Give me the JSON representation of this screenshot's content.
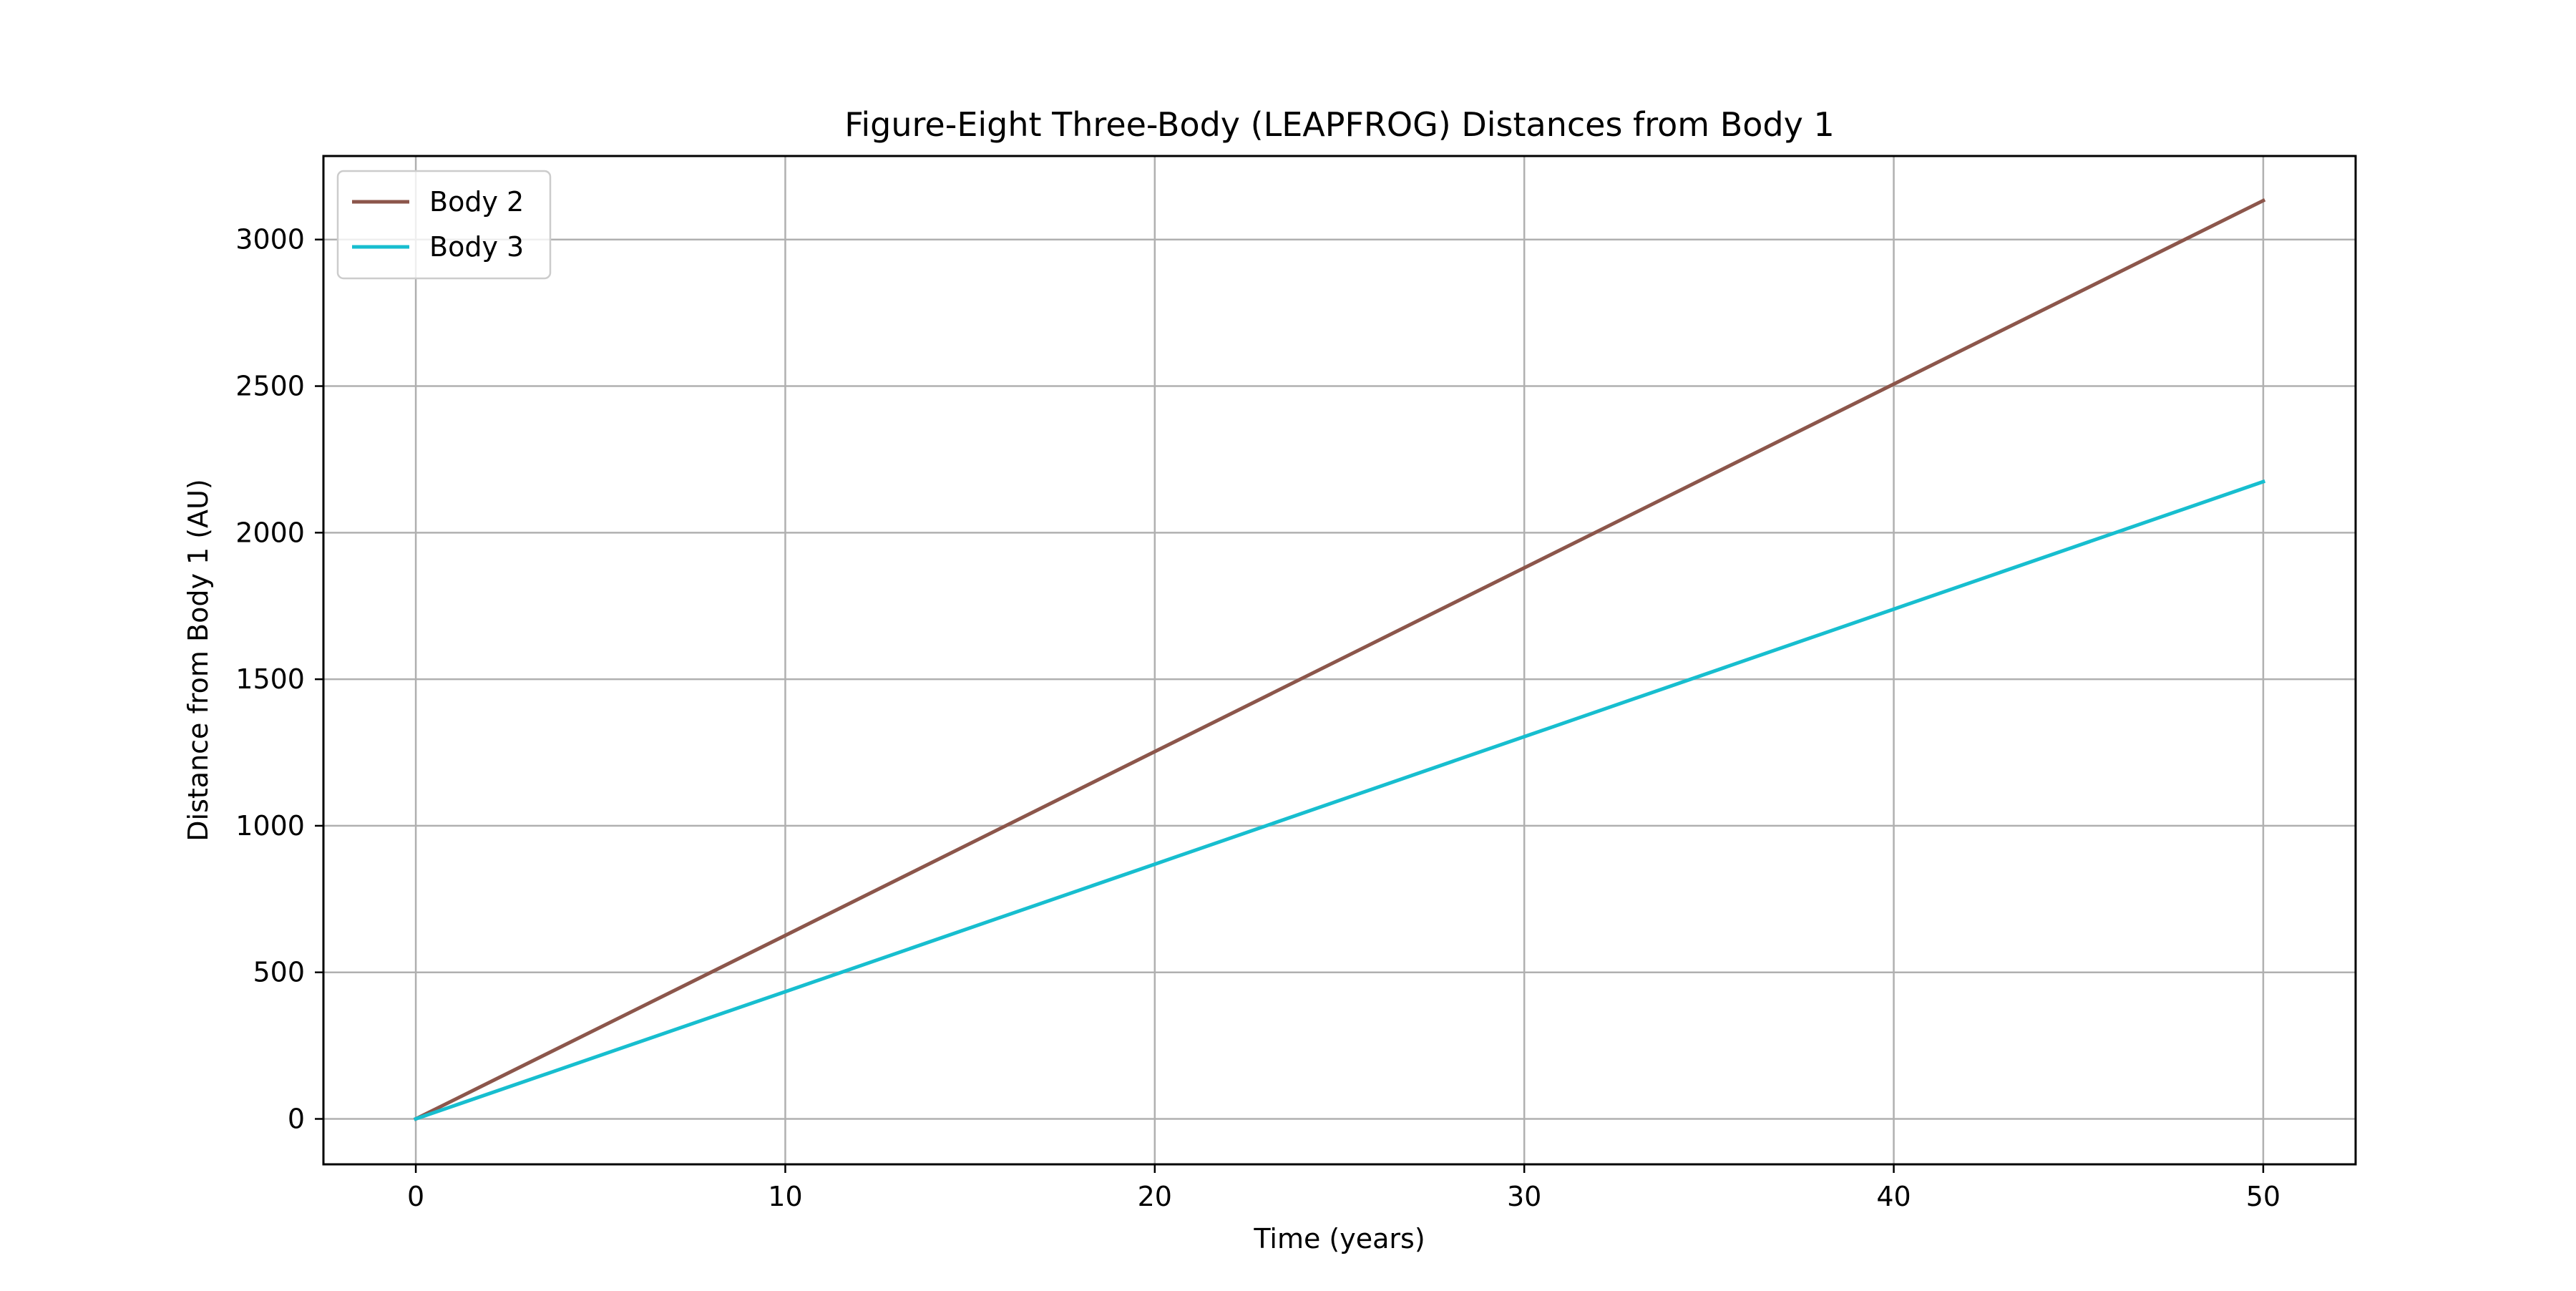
{
  "chart_data": {
    "type": "line",
    "title": "Figure-Eight Three-Body (LEAPFROG) Distances from Body 1",
    "xlabel": "Time (years)",
    "ylabel": "Distance from Body 1 (AU)",
    "xlim": [
      -2.5,
      52.5
    ],
    "ylim": [
      -155,
      3285
    ],
    "xticks": [
      0,
      10,
      20,
      30,
      40,
      50
    ],
    "xtick_labels": [
      "0",
      "10",
      "20",
      "30",
      "40",
      "50"
    ],
    "yticks": [
      0,
      500,
      1000,
      1500,
      2000,
      2500,
      3000
    ],
    "ytick_labels": [
      "0",
      "500",
      "1000",
      "1500",
      "2000",
      "2500",
      "3000"
    ],
    "grid": true,
    "legend_position": "upper-left",
    "series": [
      {
        "name": "Body 2",
        "color": "#8c564b",
        "x": [
          0,
          10,
          20,
          30,
          40,
          50
        ],
        "y": [
          0,
          626,
          1253,
          1880,
          2507,
          3133
        ]
      },
      {
        "name": "Body 3",
        "color": "#17becf",
        "x": [
          0,
          10,
          20,
          30,
          40,
          50
        ],
        "y": [
          0,
          434,
          869,
          1304,
          1739,
          2174
        ]
      }
    ]
  }
}
